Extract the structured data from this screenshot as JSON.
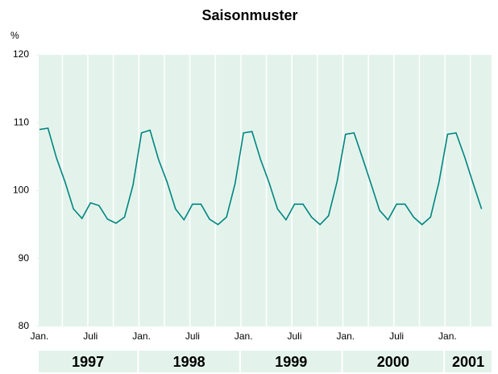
{
  "chart_data": {
    "type": "line",
    "title": "Saisonmuster",
    "y_label": "%",
    "categories": [
      "Jan.",
      null,
      null,
      null,
      null,
      null,
      "Juli",
      null,
      null,
      null,
      null,
      null,
      "Jan.",
      null,
      null,
      null,
      null,
      null,
      "Juli",
      null,
      null,
      null,
      null,
      null,
      "Jan.",
      null,
      null,
      null,
      null,
      null,
      "Juli",
      null,
      null,
      null,
      null,
      null,
      "Jan.",
      null,
      null,
      null,
      null,
      null,
      "Juli",
      null,
      null,
      null,
      null,
      null,
      "Jan.",
      null,
      null,
      null,
      null
    ],
    "years": [
      "1997",
      "1998",
      "1999",
      "2000",
      "2001"
    ],
    "series": [
      {
        "name": "Saisonmuster",
        "color": "#00857f",
        "values": [
          109.0,
          109.2,
          104.8,
          101.3,
          97.3,
          95.9,
          98.2,
          97.8,
          95.8,
          95.2,
          96.1,
          100.8,
          108.5,
          108.9,
          104.6,
          101.3,
          97.3,
          95.7,
          98.0,
          98.0,
          95.8,
          95.0,
          96.1,
          101.0,
          108.5,
          108.7,
          104.6,
          101.2,
          97.3,
          95.7,
          98.0,
          98.0,
          96.1,
          95.0,
          96.3,
          101.3,
          108.3,
          108.5,
          104.8,
          101.0,
          97.1,
          95.7,
          98.0,
          98.0,
          96.1,
          95.0,
          96.1,
          101.3,
          108.3,
          108.5,
          105.0,
          101.1,
          97.3
        ]
      }
    ],
    "ylim": [
      80,
      120
    ],
    "yticks": [
      80,
      90,
      100,
      110,
      120
    ],
    "grid": false
  }
}
